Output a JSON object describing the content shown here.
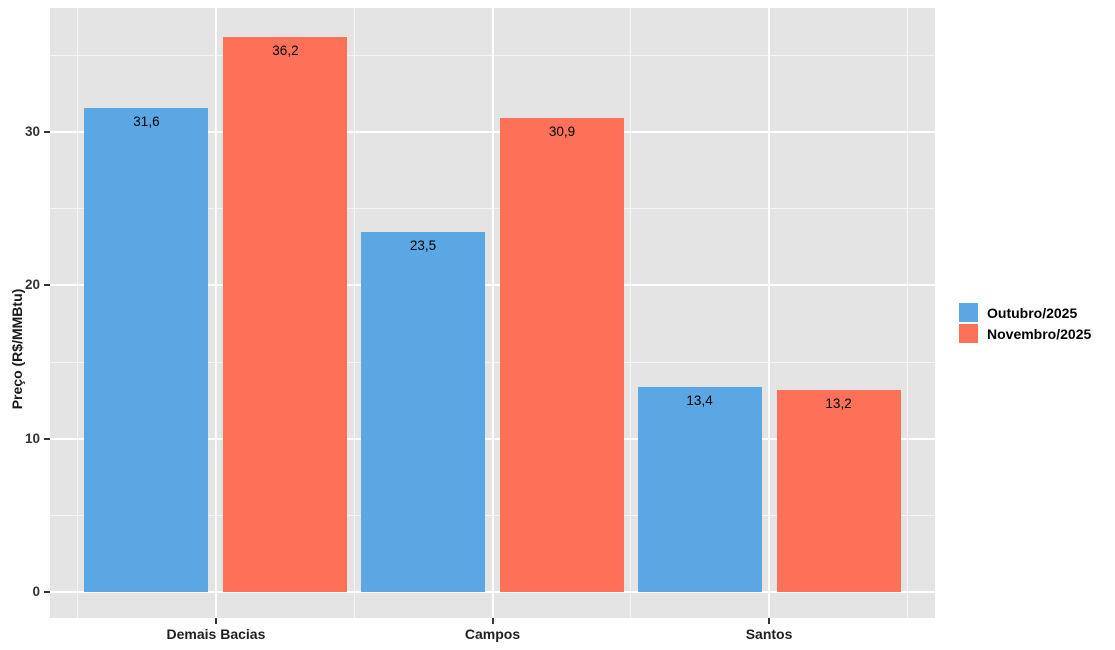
{
  "chart_data": {
    "type": "bar",
    "grouped": true,
    "title": "",
    "xlabel": "",
    "ylabel": "Preço (R$/MMBtu)",
    "categories": [
      "Demais Bacias",
      "Campos",
      "Santos"
    ],
    "series": [
      {
        "name": "Outubro/2025",
        "color": "#5AA7E4",
        "values": [
          31.6,
          23.5,
          13.4
        ],
        "value_labels": [
          "31,6",
          "23,5",
          "13,4"
        ]
      },
      {
        "name": "Novembro/2025",
        "color": "#FC7158",
        "values": [
          36.2,
          30.9,
          13.2
        ],
        "value_labels": [
          "36,2",
          "30,9",
          "13,2"
        ]
      }
    ],
    "ylim": [
      0,
      38
    ],
    "yticks": [
      0,
      10,
      20,
      30
    ],
    "ytick_labels": [
      "0",
      "10",
      "20",
      "30"
    ],
    "yticks_minor": [
      5,
      15,
      25,
      35
    ],
    "grid": true,
    "legend_position": "right",
    "colors": {
      "panel_background": "#E4E4E4",
      "major_grid": "#FFFFFF",
      "minor_grid": "#F5F5F5",
      "axis_text": "#333333",
      "bar_label_text": "#000000"
    }
  }
}
